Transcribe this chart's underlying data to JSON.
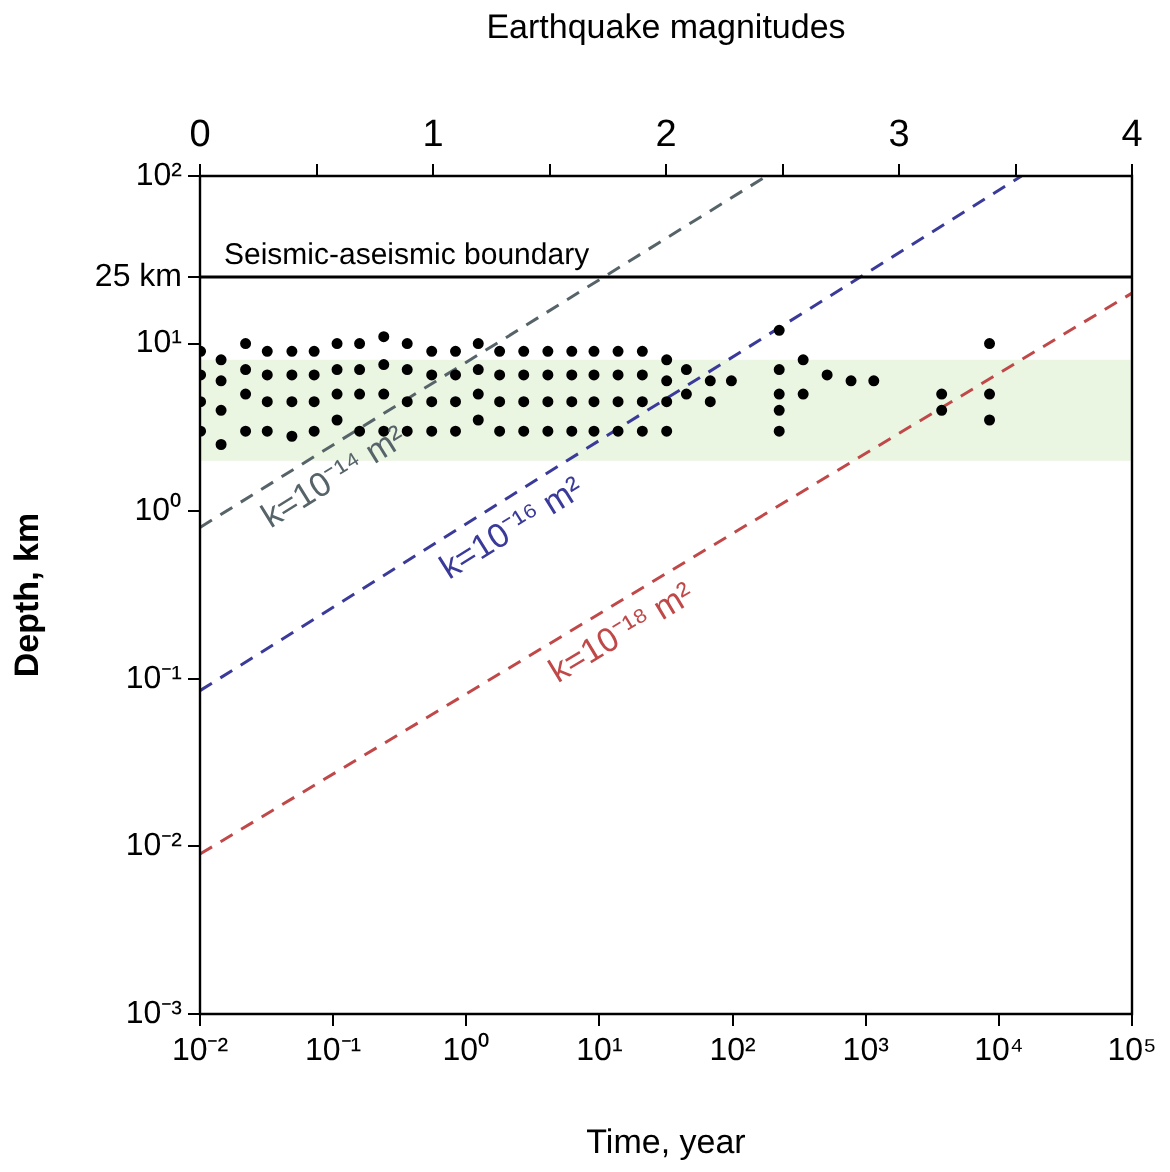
{
  "chart_data": {
    "type": "scatter",
    "xlabel": "Time, year",
    "ylabel": "Depth, km",
    "x2label": "Earthquake magnitudes",
    "log": "xy",
    "xlim": [
      0.01,
      100000
    ],
    "xticks": [
      {
        "value": 0.01,
        "label": "10⁻²"
      },
      {
        "value": 0.1,
        "label": "10⁻¹"
      },
      {
        "value": 1,
        "label": "10⁰"
      },
      {
        "value": 10,
        "label": "10¹"
      },
      {
        "value": 100,
        "label": "10²"
      },
      {
        "value": 1000,
        "label": "10³"
      },
      {
        "value": 10000,
        "label": "10⁴"
      },
      {
        "value": 100000,
        "label": "10⁵"
      }
    ],
    "ylim": [
      0.001,
      100
    ],
    "yticks": [
      {
        "value": 0.001,
        "label": "10⁻³"
      },
      {
        "value": 0.01,
        "label": "10⁻²"
      },
      {
        "value": 0.1,
        "label": "10⁻¹"
      },
      {
        "value": 1,
        "label": "10⁰"
      },
      {
        "value": 10,
        "label": "10¹"
      },
      {
        "value": 25,
        "label": "25 km"
      },
      {
        "value": 100,
        "label": "10²"
      }
    ],
    "x2lim": [
      0,
      4
    ],
    "x2ticks": [
      0,
      {
        "value": 0.5,
        "label": null
      },
      1,
      {
        "value": 1.5,
        "label": null
      },
      2,
      {
        "value": 2.5,
        "label": null
      },
      3,
      {
        "value": 3.5,
        "label": null
      },
      4
    ],
    "legend": false,
    "ref_lines": [
      {
        "axis": "y",
        "value": 25,
        "label": "Seismic-aseismic boundary",
        "color": "#000000"
      }
    ],
    "bands": [
      {
        "axis": "y",
        "from": 2,
        "to": 8,
        "color": "#eaf5e2"
      }
    ],
    "series": [
      {
        "type": "scatter",
        "marker": "circle",
        "color": "#000000",
        "x": [
          0.0101,
          0.0101,
          0.0101,
          0.0101,
          0.0144,
          0.0144,
          0.0144,
          0.0144,
          0.022,
          0.022,
          0.022,
          0.022,
          0.032,
          0.032,
          0.032,
          0.032,
          0.049,
          0.049,
          0.049,
          0.049,
          0.072,
          0.072,
          0.072,
          0.072,
          0.107,
          0.107,
          0.107,
          0.107,
          0.158,
          0.158,
          0.158,
          0.158,
          0.24,
          0.24,
          0.24,
          0.24,
          0.36,
          0.36,
          0.36,
          0.36,
          0.55,
          0.55,
          0.55,
          0.55,
          0.83,
          0.83,
          0.83,
          0.83,
          1.23,
          1.23,
          1.23,
          1.23,
          1.78,
          1.78,
          1.78,
          1.78,
          2.7,
          2.7,
          2.7,
          2.7,
          4.1,
          4.1,
          4.1,
          4.1,
          6.2,
          6.2,
          6.2,
          6.2,
          9.1,
          9.1,
          9.1,
          9.1,
          13.8,
          13.8,
          13.8,
          13.8,
          21,
          21,
          21,
          21,
          32,
          32,
          32,
          32,
          45,
          45,
          68,
          68,
          98,
          224,
          224,
          224,
          224,
          224,
          339,
          339,
          513,
          776,
          1150,
          3720,
          3720,
          8510,
          8510,
          8510
        ],
        "values": [
          9,
          6.5,
          4.5,
          3,
          8,
          6,
          4,
          2.5,
          10,
          7,
          5,
          3,
          9,
          6.5,
          4.5,
          3,
          9,
          6.5,
          4.5,
          2.8,
          9,
          6.5,
          4.5,
          3,
          10,
          7,
          5,
          3.5,
          10,
          7,
          5,
          3,
          11,
          7.5,
          5,
          3,
          10,
          7,
          4.5,
          3,
          9,
          6.5,
          4.5,
          3,
          9,
          6.5,
          4.5,
          3,
          10,
          7,
          5,
          3.5,
          9,
          6.5,
          4.5,
          3,
          9,
          6.5,
          4.5,
          3,
          9,
          6.5,
          4.5,
          3,
          9,
          6.5,
          4.5,
          3,
          9,
          6.5,
          4.5,
          3,
          9,
          6.5,
          4.5,
          3,
          9,
          6.5,
          4.5,
          3,
          8,
          6,
          4.5,
          3,
          7,
          5,
          6,
          4.5,
          6,
          12,
          7,
          5,
          4,
          3,
          8,
          5,
          6.5,
          6,
          6,
          5,
          4,
          10,
          5,
          3.5
        ]
      },
      {
        "type": "line",
        "name": "k=10⁻¹⁴ m²",
        "color": "#56646a",
        "line_style": "dashed",
        "marker": "none",
        "x": [
          0.01,
          180
        ],
        "values": [
          0.8,
          100
        ]
      },
      {
        "type": "line",
        "name": "k=10⁻¹⁶ m²",
        "color": "#3a3a9a",
        "line_style": "dashed",
        "marker": "none",
        "x": [
          0.01,
          14800
        ],
        "values": [
          0.085,
          100
        ]
      },
      {
        "type": "line",
        "name": "k=10⁻¹⁸ m²",
        "color": "#c04848",
        "line_style": "dashed",
        "marker": "none",
        "x": [
          0.01,
          100000
        ],
        "values": [
          0.009,
          20
        ]
      }
    ]
  }
}
